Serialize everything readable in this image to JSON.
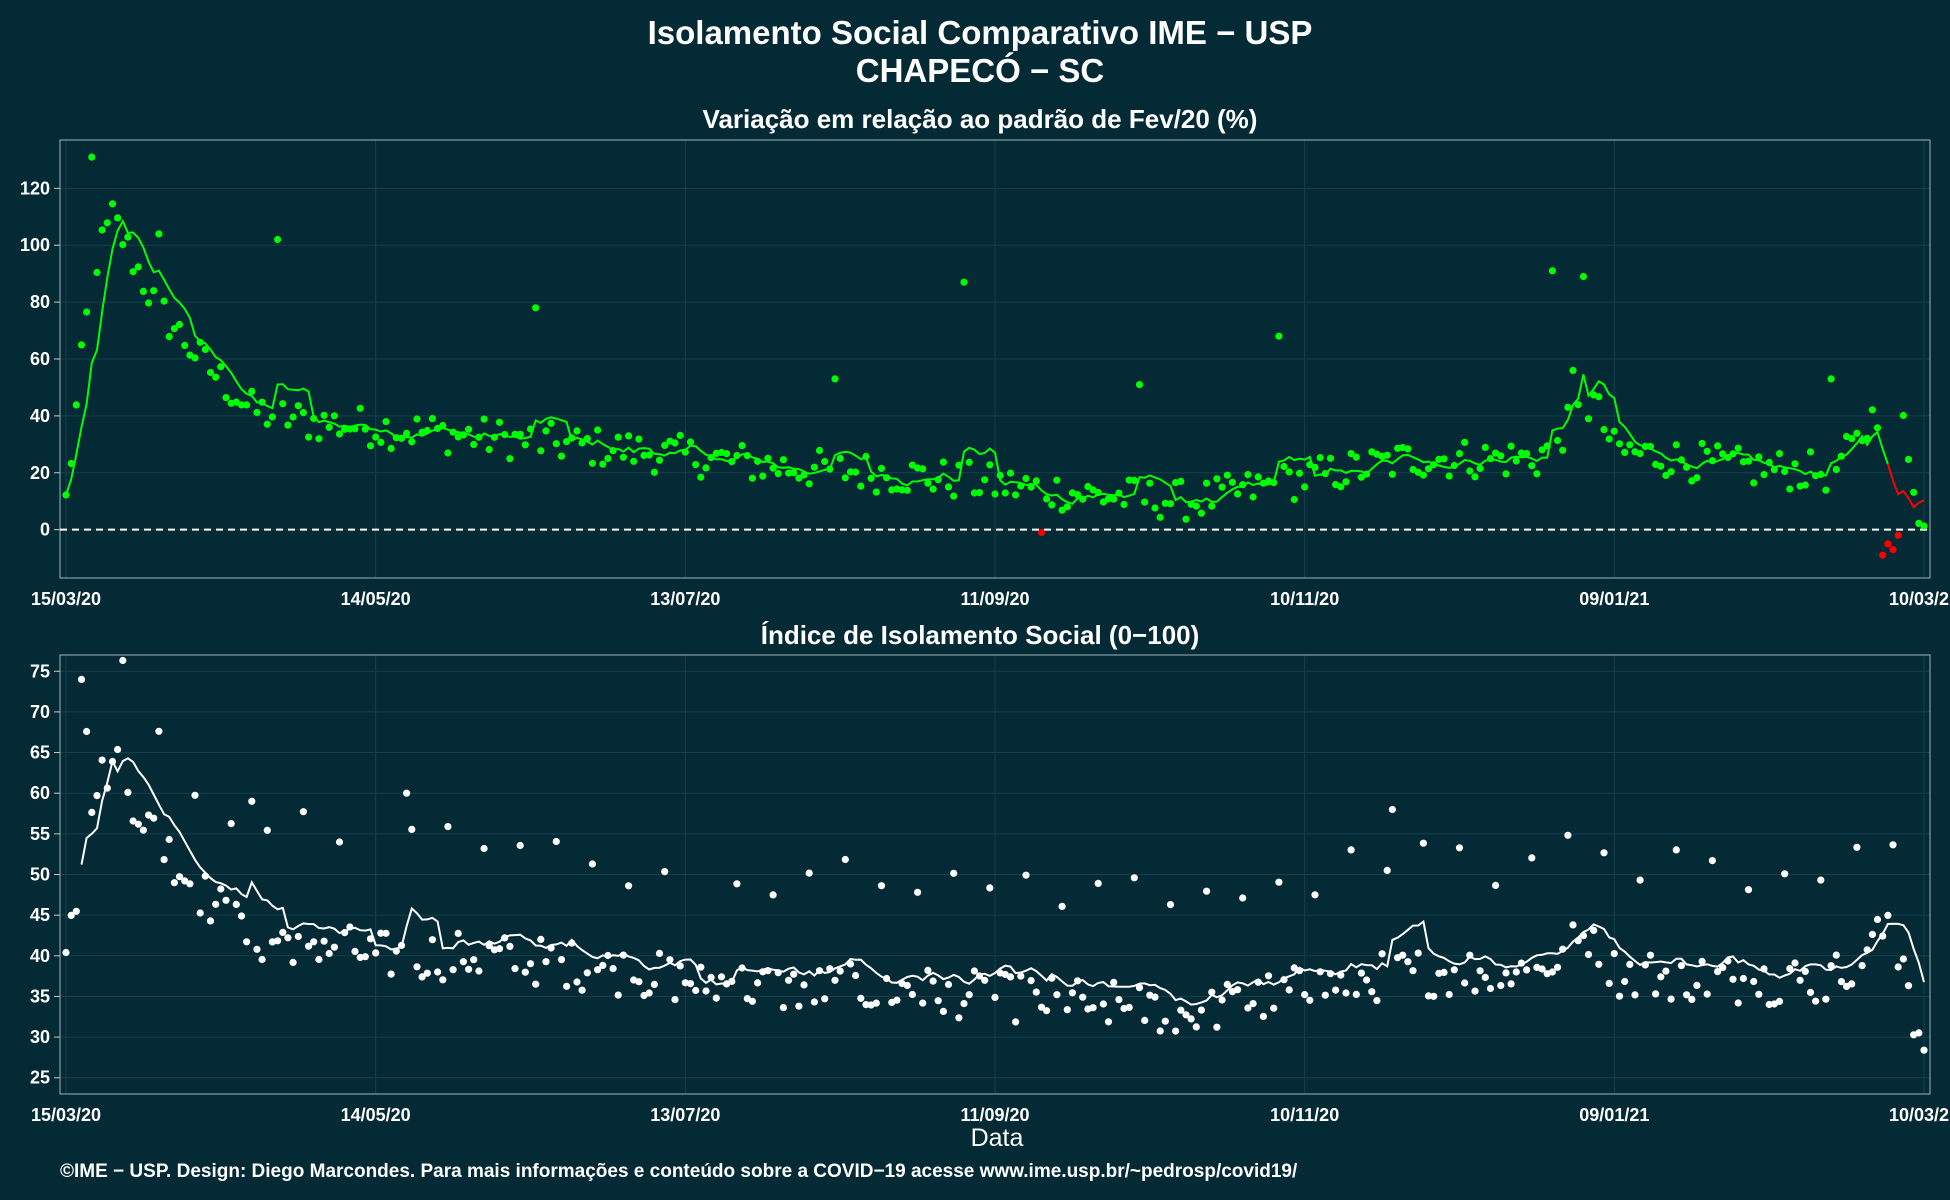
{
  "title": "Isolamento Social Comparativo IME − USP",
  "subtitle": "CHAPECÓ − SC",
  "caption": "©IME − USP. Design: Diego Marcondes. Para mais informações e conteúdo sobre a COVID−19 acesse www.ime.usp.br/~pedrosp/covid19/",
  "colors": {
    "background": "#042a36",
    "grid": "#163f4c",
    "axis_text": "#ffffff",
    "variation_positive": "#00ff00",
    "variation_negative": "#ff0000",
    "index_points": "#ffffff"
  },
  "chart_data": [
    {
      "type": "scatter",
      "title": "Variação em relação ao padrão de Fev/20 (%)",
      "xlabel": "",
      "ylabel": "",
      "x_range": [
        "15/03/20",
        "10/03/21"
      ],
      "x_ticks": [
        "15/03/20",
        "14/05/20",
        "13/07/20",
        "11/09/20",
        "10/11/20",
        "09/01/21",
        "10/03/21"
      ],
      "ylim": [
        -17,
        137
      ],
      "y_ticks": [
        0,
        20,
        40,
        60,
        80,
        100,
        120
      ],
      "reference_line": 0,
      "grid": true,
      "legend": "none",
      "series": [
        {
          "role": "daily",
          "keyframes": [
            [
              "15/03/20",
              10
            ],
            [
              "20/03/20",
              90
            ],
            [
              "24/03/20",
              110
            ],
            [
              "01/04/20",
              80
            ],
            [
              "10/04/20",
              60
            ],
            [
              "20/04/20",
              42
            ],
            [
              "01/05/20",
              38
            ],
            [
              "14/05/20",
              36
            ],
            [
              "01/06/20",
              33
            ],
            [
              "20/06/20",
              30
            ],
            [
              "13/07/20",
              26
            ],
            [
              "01/08/20",
              22
            ],
            [
              "20/08/20",
              20
            ],
            [
              "11/09/20",
              16
            ],
            [
              "01/10/20",
              12
            ],
            [
              "20/10/20",
              10
            ],
            [
              "10/11/20",
              18
            ],
            [
              "01/12/20",
              25
            ],
            [
              "25/12/20",
              25
            ],
            [
              "01/01/21",
              38
            ],
            [
              "05/01/21",
              45
            ],
            [
              "09/01/21",
              28
            ],
            [
              "01/02/21",
              22
            ],
            [
              "20/02/21",
              20
            ],
            [
              "25/02/21",
              30
            ],
            [
              "02/03/21",
              45
            ],
            [
              "06/03/21",
              38
            ],
            [
              "09/03/21",
              8
            ],
            [
              "10/03/21",
              0
            ]
          ],
          "noise": 7,
          "outliers": [
            [
              "20/03/20",
              131
            ],
            [
              "02/04/20",
              104
            ],
            [
              "25/04/20",
              102
            ],
            [
              "14/06/20",
              78
            ],
            [
              "11/08/20",
              53
            ],
            [
              "05/09/20",
              87
            ],
            [
              "09/10/20",
              51
            ],
            [
              "05/11/20",
              68
            ],
            [
              "28/12/20",
              91
            ],
            [
              "03/01/21",
              89
            ],
            [
              "01/01/21",
              56
            ],
            [
              "20/02/21",
              53
            ]
          ],
          "negatives": [
            [
              "20/09/20",
              -1
            ],
            [
              "02/03/21",
              -9
            ],
            [
              "03/03/21",
              -5
            ],
            [
              "04/03/21",
              -7
            ],
            [
              "05/03/21",
              -2
            ]
          ]
        },
        {
          "role": "moving_average",
          "values_ref": "daily"
        }
      ]
    },
    {
      "type": "scatter",
      "title": "Índice de Isolamento Social (0−100)",
      "xlabel": "Data",
      "ylabel": "",
      "x_range": [
        "15/03/20",
        "10/03/21"
      ],
      "x_ticks": [
        "15/03/20",
        "14/05/20",
        "13/07/20",
        "11/09/20",
        "10/11/20",
        "09/01/21",
        "10/03/21"
      ],
      "ylim": [
        23,
        77
      ],
      "y_ticks": [
        25,
        30,
        35,
        40,
        45,
        50,
        55,
        60,
        65,
        70,
        75
      ],
      "grid": true,
      "legend": "none",
      "series": [
        {
          "role": "daily",
          "keyframes": [
            [
              "15/03/20",
              40
            ],
            [
              "20/03/20",
              60
            ],
            [
              "24/03/20",
              64
            ],
            [
              "01/04/20",
              55
            ],
            [
              "10/04/20",
              48
            ],
            [
              "20/04/20",
              42
            ],
            [
              "01/05/20",
              42
            ],
            [
              "14/05/20",
              40
            ],
            [
              "01/06/20",
              40
            ],
            [
              "20/06/20",
              39
            ],
            [
              "13/07/20",
              37
            ],
            [
              "01/08/20",
              36
            ],
            [
              "20/08/20",
              36
            ],
            [
              "11/09/20",
              35
            ],
            [
              "01/10/20",
              34
            ],
            [
              "20/10/20",
              33
            ],
            [
              "10/11/20",
              36
            ],
            [
              "01/12/20",
              38
            ],
            [
              "25/12/20",
              38
            ],
            [
              "05/01/21",
              43
            ],
            [
              "09/01/21",
              38
            ],
            [
              "01/02/21",
              37
            ],
            [
              "20/02/21",
              37
            ],
            [
              "02/03/21",
              43
            ],
            [
              "06/03/21",
              40
            ],
            [
              "08/03/21",
              33
            ],
            [
              "10/03/21",
              26
            ]
          ],
          "noise": 3,
          "weekly_peaks": 15,
          "outliers": [
            [
              "18/03/20",
              74
            ],
            [
              "20/04/20",
              59
            ],
            [
              "20/05/20",
              60
            ],
            [
              "27/11/20",
              58
            ]
          ]
        },
        {
          "role": "moving_average",
          "values_ref": "daily"
        }
      ]
    }
  ]
}
